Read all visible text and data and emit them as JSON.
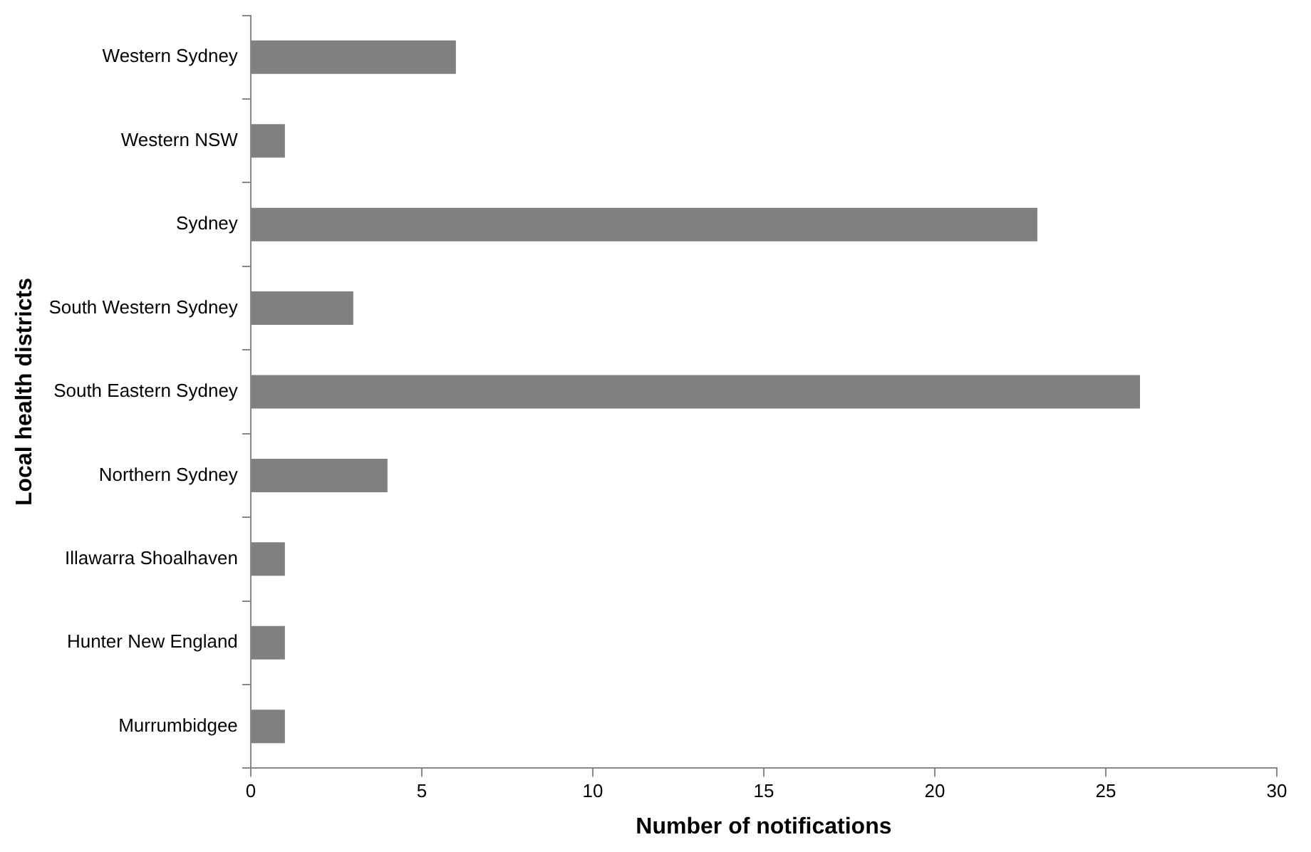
{
  "chart_data": {
    "type": "bar",
    "orientation": "horizontal",
    "xlabel": "Number of notifications",
    "ylabel": "Local health districts",
    "categories": [
      "Western Sydney",
      "Western NSW",
      "Sydney",
      "South Western Sydney",
      "South Eastern Sydney",
      "Northern Sydney",
      "Illawarra Shoalhaven",
      "Hunter New England",
      "Murrumbidgee"
    ],
    "values": [
      6,
      1,
      23,
      3,
      26,
      4,
      1,
      1,
      1
    ],
    "color": "#808080",
    "xlim": [
      0,
      30
    ],
    "xticks": [
      0,
      5,
      10,
      15,
      20,
      25,
      30
    ],
    "grid": false,
    "legend": false
  }
}
